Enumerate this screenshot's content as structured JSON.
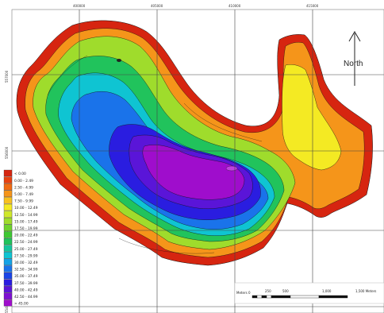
{
  "grid": {
    "x_labels": [
      "400000",
      "405000",
      "410000",
      "415000"
    ],
    "y_labels": [
      "557000",
      "556000",
      "555000",
      "554000"
    ]
  },
  "north_arrow": {
    "label": "North"
  },
  "scale_bar": {
    "labels": [
      "Meters 0",
      "250",
      "500",
      "1,000",
      "1,500 Meters"
    ]
  },
  "legend": {
    "entries": [
      {
        "label": "< 0.00",
        "color": "#d62510"
      },
      {
        "label": "0.00 - 2.49",
        "color": "#e8410f"
      },
      {
        "label": "2.50 - 4.99",
        "color": "#f06a12"
      },
      {
        "label": "5.00 - 7.49",
        "color": "#f5951a"
      },
      {
        "label": "7.50 - 9.99",
        "color": "#f8c11f"
      },
      {
        "label": "10.00 - 12.49",
        "color": "#f4ea23"
      },
      {
        "label": "12.50 - 14.99",
        "color": "#cfe82a"
      },
      {
        "label": "15.00 - 17.49",
        "color": "#9fdc2c"
      },
      {
        "label": "17.50 - 19.99",
        "color": "#6fd22f"
      },
      {
        "label": "20.00 - 22.49",
        "color": "#3ec832"
      },
      {
        "label": "22.50 - 24.99",
        "color": "#21c35c"
      },
      {
        "label": "25.00 - 27.49",
        "color": "#16c59d"
      },
      {
        "label": "27.50 - 29.99",
        "color": "#0fc4d2"
      },
      {
        "label": "30.00 - 32.49",
        "color": "#15a3e6"
      },
      {
        "label": "32.50 - 34.99",
        "color": "#1a73ea"
      },
      {
        "label": "35.00 - 37.49",
        "color": "#1a45e8"
      },
      {
        "label": "37.50 - 39.99",
        "color": "#2a1de0"
      },
      {
        "label": "40.00 - 42.49",
        "color": "#5a15d8"
      },
      {
        "label": "42.50 - 44.99",
        "color": "#7d10d2"
      },
      {
        "label": "> 45.00",
        "color": "#9f0dcc"
      }
    ]
  }
}
